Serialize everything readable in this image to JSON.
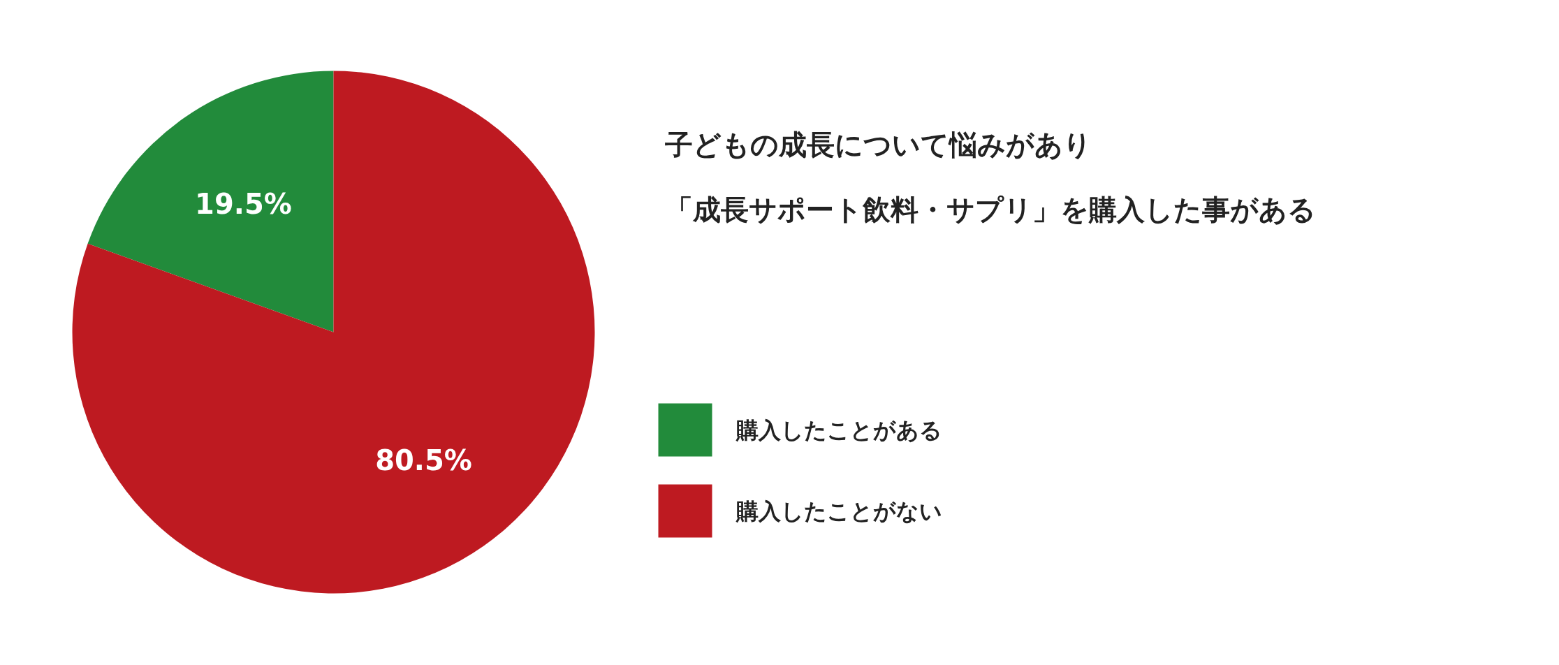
{
  "chart_data": {
    "type": "pie",
    "title": "子どもの成長について悩みがあり",
    "subtitle": "「成長サポート飲料・サプリ」を購入した事がある",
    "categories": [
      "購入したことがある",
      "購入したことがない"
    ],
    "values": [
      19.5,
      80.5
    ],
    "colors": [
      "#228b3b",
      "#be1a21"
    ],
    "value_labels": [
      "19.5%",
      "80.5%"
    ],
    "legend": "right"
  }
}
